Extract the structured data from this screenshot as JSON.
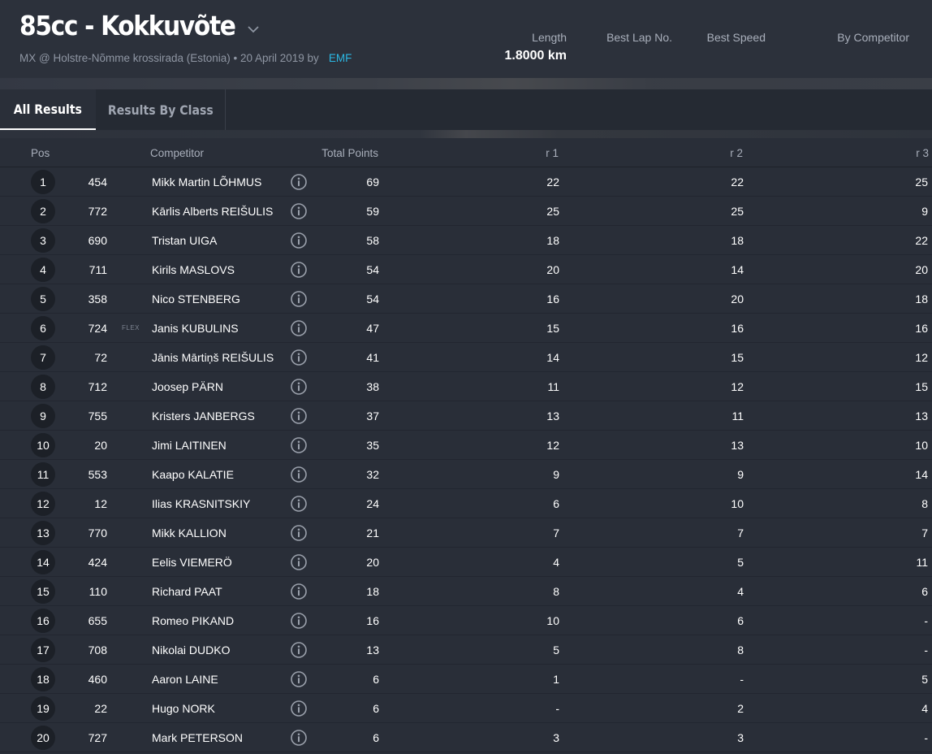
{
  "header": {
    "title": "85cc - Kokkuvõte",
    "subtitle": "MX @ Holstre-Nõmme krossirada (Estonia) • 20 April 2019 by",
    "organizer": "EMF",
    "stats": {
      "length_label": "Length",
      "length_value": "1.8000 km",
      "best_lap_label": "Best Lap No.",
      "best_speed_label": "Best Speed",
      "by_competitor_label": "By Competitor"
    }
  },
  "tabs": {
    "all_results": "All Results",
    "results_by_class": "Results By Class"
  },
  "table": {
    "headers": {
      "pos": "Pos",
      "competitor": "Competitor",
      "total_points": "Total Points",
      "r1": "r 1",
      "r2": "r 2",
      "r3": "r 3"
    },
    "rows": [
      {
        "pos": "1",
        "num": "454",
        "tag": "",
        "name": "Mikk Martin LÕHMUS",
        "total": "69",
        "r1": "22",
        "r2": "22",
        "r3": "25"
      },
      {
        "pos": "2",
        "num": "772",
        "tag": "",
        "name": "Kārlis Alberts REIŠULIS",
        "total": "59",
        "r1": "25",
        "r2": "25",
        "r3": "9"
      },
      {
        "pos": "3",
        "num": "690",
        "tag": "",
        "name": "Tristan UIGA",
        "total": "58",
        "r1": "18",
        "r2": "18",
        "r3": "22"
      },
      {
        "pos": "4",
        "num": "711",
        "tag": "",
        "name": "Kirils MASLOVS",
        "total": "54",
        "r1": "20",
        "r2": "14",
        "r3": "20"
      },
      {
        "pos": "5",
        "num": "358",
        "tag": "",
        "name": "Nico STENBERG",
        "total": "54",
        "r1": "16",
        "r2": "20",
        "r3": "18"
      },
      {
        "pos": "6",
        "num": "724",
        "tag": "FLEX",
        "name": "Janis KUBULINS",
        "total": "47",
        "r1": "15",
        "r2": "16",
        "r3": "16"
      },
      {
        "pos": "7",
        "num": "72",
        "tag": "",
        "name": "Jānis Mārtiņš REIŠULIS",
        "total": "41",
        "r1": "14",
        "r2": "15",
        "r3": "12"
      },
      {
        "pos": "8",
        "num": "712",
        "tag": "",
        "name": "Joosep PÄRN",
        "total": "38",
        "r1": "11",
        "r2": "12",
        "r3": "15"
      },
      {
        "pos": "9",
        "num": "755",
        "tag": "",
        "name": "Kristers JANBERGS",
        "total": "37",
        "r1": "13",
        "r2": "11",
        "r3": "13"
      },
      {
        "pos": "10",
        "num": "20",
        "tag": "",
        "name": "Jimi LAITINEN",
        "total": "35",
        "r1": "12",
        "r2": "13",
        "r3": "10"
      },
      {
        "pos": "11",
        "num": "553",
        "tag": "",
        "name": "Kaapo KALATIE",
        "total": "32",
        "r1": "9",
        "r2": "9",
        "r3": "14"
      },
      {
        "pos": "12",
        "num": "12",
        "tag": "",
        "name": "Ilias KRASNITSKIY",
        "total": "24",
        "r1": "6",
        "r2": "10",
        "r3": "8"
      },
      {
        "pos": "13",
        "num": "770",
        "tag": "",
        "name": "Mikk KALLION",
        "total": "21",
        "r1": "7",
        "r2": "7",
        "r3": "7"
      },
      {
        "pos": "14",
        "num": "424",
        "tag": "",
        "name": "Eelis VIEMERÖ",
        "total": "20",
        "r1": "4",
        "r2": "5",
        "r3": "11"
      },
      {
        "pos": "15",
        "num": "110",
        "tag": "",
        "name": "Richard PAAT",
        "total": "18",
        "r1": "8",
        "r2": "4",
        "r3": "6"
      },
      {
        "pos": "16",
        "num": "655",
        "tag": "",
        "name": "Romeo PIKAND",
        "total": "16",
        "r1": "10",
        "r2": "6",
        "r3": "-"
      },
      {
        "pos": "17",
        "num": "708",
        "tag": "",
        "name": "Nikolai DUDKO",
        "total": "13",
        "r1": "5",
        "r2": "8",
        "r3": "-"
      },
      {
        "pos": "18",
        "num": "460",
        "tag": "",
        "name": "Aaron LAINE",
        "total": "6",
        "r1": "1",
        "r2": "-",
        "r3": "5"
      },
      {
        "pos": "19",
        "num": "22",
        "tag": "",
        "name": "Hugo NORK",
        "total": "6",
        "r1": "-",
        "r2": "2",
        "r3": "4"
      },
      {
        "pos": "20",
        "num": "727",
        "tag": "",
        "name": "Mark PETERSON",
        "total": "6",
        "r1": "3",
        "r2": "3",
        "r3": "-"
      }
    ]
  },
  "icons": {
    "title_dropdown": "chevron-down-icon",
    "row_info": "info-icon"
  },
  "colors": {
    "background": "#292e38",
    "accent_link": "#2bb7e3",
    "badge": "#1c2027"
  }
}
